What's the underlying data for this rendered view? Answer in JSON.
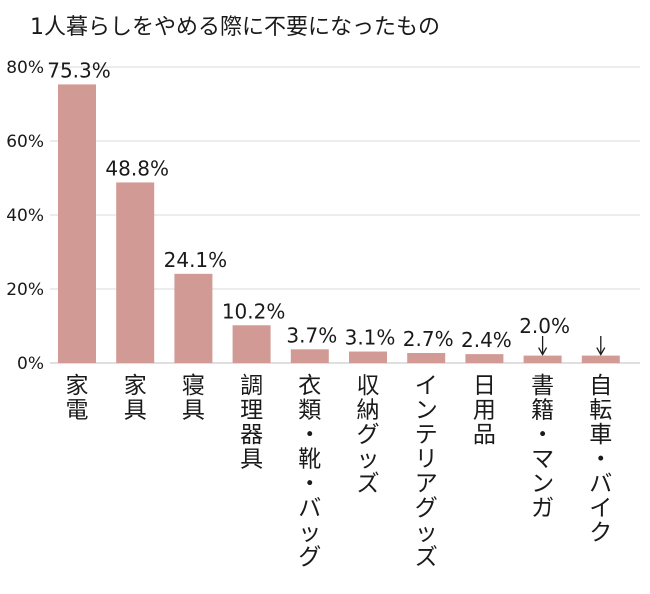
{
  "chart_data": {
    "type": "bar",
    "title": "1人暮らしをやめる際に不要になったもの",
    "categories": [
      "家電",
      "家具",
      "寝具",
      "調理器具",
      "衣類・靴・バッグ",
      "収納グッズ",
      "インテリアグッズ",
      "日用品",
      "書籍・マンガ",
      "自転車・バイク"
    ],
    "values": [
      75.3,
      48.8,
      24.1,
      10.2,
      3.7,
      3.1,
      2.7,
      2.4,
      2.0,
      2.0
    ],
    "value_labels": [
      "75.3%",
      "48.8%",
      "24.1%",
      "10.2%",
      "3.7%",
      "3.1%",
      "2.7%",
      "2.4%",
      "2.0%",
      ""
    ],
    "y_ticks": [
      0,
      20,
      40,
      60,
      80
    ],
    "y_tick_labels": [
      "0%",
      "20%",
      "40%",
      "60%",
      "80%"
    ],
    "ylim": [
      0,
      80
    ],
    "grid": true,
    "xlabel": "",
    "ylabel": "",
    "bar_color": "#d29a94",
    "arrow_annotations": [
      8,
      9
    ]
  }
}
